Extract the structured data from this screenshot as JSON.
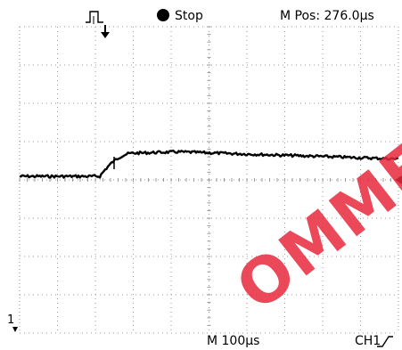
{
  "status": {
    "run_state": "Stop",
    "position_label": "M Pos: 276.0µs",
    "trigger_icon": "pulse-trigger-icon"
  },
  "readouts": {
    "timebase": "M 100µs",
    "trigger_source": "CH1",
    "trigger_slope_icon": "rising-edge-icon",
    "channel_marker": "1"
  },
  "watermark": {
    "text": "OMMF",
    "color": "#e8283c"
  },
  "colors": {
    "trace": "#000000",
    "grid": "#9a9a9a",
    "background": "#ffffff"
  }
}
